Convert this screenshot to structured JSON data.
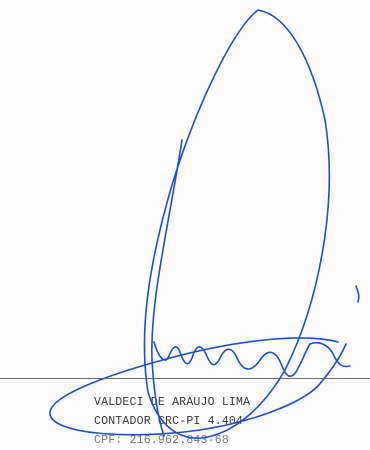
{
  "signatory": {
    "name": "VALDECI DE ARAUJO LIMA",
    "title": "CONTADOR CRC-PI 4.404",
    "cpf": "CPF: 216.962.843-68"
  },
  "signature": {
    "ink_color": "#1f4fd0",
    "line_color": "#6e6e6e"
  }
}
